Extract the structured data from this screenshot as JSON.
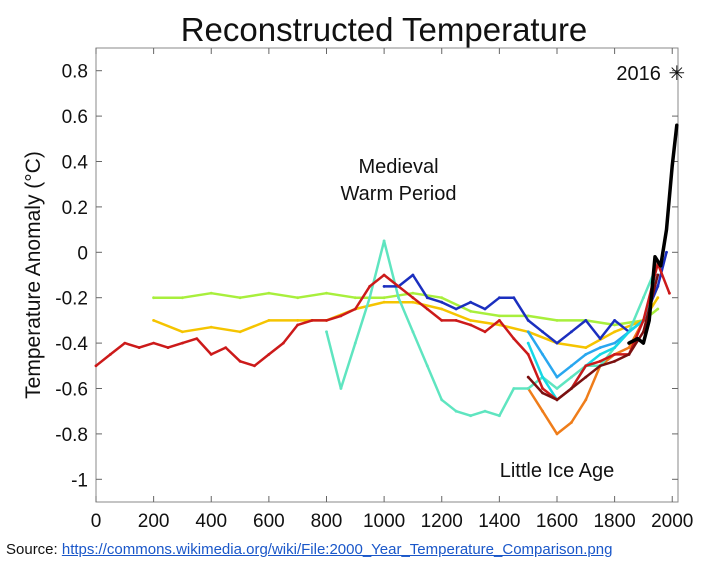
{
  "chart_data": {
    "type": "line",
    "title": "Reconstructed Temperature",
    "xlabel": "",
    "ylabel": "Temperature Anomaly (°C)",
    "xlim": [
      0,
      2020
    ],
    "ylim": [
      -1.1,
      0.9
    ],
    "x_ticks": [
      0,
      200,
      400,
      600,
      800,
      1000,
      1200,
      1400,
      1600,
      1800,
      2000
    ],
    "y_ticks": [
      -1,
      -0.8,
      -0.6,
      -0.4,
      -0.2,
      0,
      0.2,
      0.4,
      0.6,
      0.8
    ],
    "y_tick_labels": [
      "-1",
      "-0.8",
      "-0.6",
      "-0.4",
      "-0.2",
      "0",
      "0.2",
      "0.4",
      "0.6",
      "0.8"
    ],
    "annotations": [
      {
        "text": "Medieval",
        "x": 1050,
        "y": 0.35
      },
      {
        "text": "Warm Period",
        "x": 1050,
        "y": 0.23
      },
      {
        "text": "Little Ice Age",
        "x": 1600,
        "y": -0.99
      }
    ],
    "marker": {
      "label": "2016",
      "x": 2016,
      "y": 0.79,
      "symbol": "✳"
    },
    "series": [
      {
        "name": "lime",
        "color": "#a8ef3c",
        "x": [
          200,
          300,
          400,
          500,
          600,
          700,
          800,
          900,
          1000,
          1100,
          1200,
          1300,
          1400,
          1500,
          1600,
          1700,
          1800,
          1900,
          1950
        ],
        "y": [
          -0.2,
          -0.2,
          -0.18,
          -0.2,
          -0.18,
          -0.2,
          -0.18,
          -0.2,
          -0.2,
          -0.18,
          -0.2,
          -0.26,
          -0.28,
          -0.28,
          -0.3,
          -0.3,
          -0.32,
          -0.3,
          -0.25
        ]
      },
      {
        "name": "yellow",
        "color": "#f5c400",
        "x": [
          200,
          300,
          400,
          500,
          600,
          700,
          800,
          900,
          1000,
          1100,
          1200,
          1300,
          1400,
          1500,
          1600,
          1700,
          1800,
          1900,
          1950
        ],
        "y": [
          -0.3,
          -0.35,
          -0.33,
          -0.35,
          -0.3,
          -0.3,
          -0.3,
          -0.25,
          -0.22,
          -0.22,
          -0.25,
          -0.3,
          -0.32,
          -0.35,
          -0.4,
          -0.42,
          -0.35,
          -0.3,
          -0.2
        ]
      },
      {
        "name": "orange",
        "color": "#ef7d1a",
        "x": [
          1500,
          1550,
          1600,
          1650,
          1700,
          1750,
          1800,
          1850,
          1900,
          1950
        ],
        "y": [
          -0.6,
          -0.7,
          -0.8,
          -0.75,
          -0.65,
          -0.5,
          -0.45,
          -0.42,
          -0.3,
          -0.15
        ]
      },
      {
        "name": "aquamarine",
        "color": "#5fe5c0",
        "x": [
          800,
          850,
          900,
          950,
          1000,
          1050,
          1100,
          1150,
          1200,
          1250,
          1300,
          1350,
          1400,
          1450,
          1500,
          1550,
          1600,
          1650,
          1700,
          1750,
          1800,
          1850,
          1900,
          1950
        ],
        "y": [
          -0.35,
          -0.6,
          -0.4,
          -0.2,
          0.05,
          -0.2,
          -0.35,
          -0.5,
          -0.65,
          -0.7,
          -0.72,
          -0.7,
          -0.72,
          -0.6,
          -0.6,
          -0.55,
          -0.6,
          -0.55,
          -0.5,
          -0.5,
          -0.42,
          -0.35,
          -0.2,
          -0.05
        ]
      },
      {
        "name": "blue",
        "color": "#1b2fbf",
        "x": [
          1000,
          1050,
          1100,
          1150,
          1200,
          1250,
          1300,
          1350,
          1400,
          1450,
          1500,
          1550,
          1600,
          1650,
          1700,
          1750,
          1800,
          1850,
          1900,
          1950,
          1980
        ],
        "y": [
          -0.15,
          -0.15,
          -0.1,
          -0.2,
          -0.22,
          -0.25,
          -0.22,
          -0.25,
          -0.2,
          -0.2,
          -0.3,
          -0.35,
          -0.4,
          -0.35,
          -0.3,
          -0.38,
          -0.3,
          -0.35,
          -0.3,
          -0.15,
          0
        ]
      },
      {
        "name": "deep-sky-blue",
        "color": "#29a7ef",
        "x": [
          1500,
          1550,
          1600,
          1650,
          1700,
          1750,
          1800,
          1850,
          1900,
          1950
        ],
        "y": [
          -0.35,
          -0.45,
          -0.55,
          -0.5,
          -0.45,
          -0.42,
          -0.4,
          -0.35,
          -0.3,
          -0.1
        ]
      },
      {
        "name": "cyan",
        "color": "#16d8e6",
        "x": [
          1500,
          1550,
          1600,
          1650,
          1700,
          1750,
          1800,
          1850,
          1900,
          1950
        ],
        "y": [
          -0.4,
          -0.55,
          -0.65,
          -0.6,
          -0.5,
          -0.45,
          -0.42,
          -0.35,
          -0.3,
          -0.1
        ]
      },
      {
        "name": "red",
        "color": "#cc1a1a",
        "x": [
          0,
          50,
          100,
          150,
          200,
          250,
          300,
          350,
          400,
          450,
          500,
          550,
          600,
          650,
          700,
          750,
          800,
          850,
          900,
          950,
          1000,
          1050,
          1100,
          1150,
          1200,
          1250,
          1300,
          1350,
          1400,
          1450,
          1500,
          1550,
          1600,
          1650,
          1700,
          1750,
          1800,
          1850,
          1900,
          1950,
          1990
        ],
        "y": [
          -0.5,
          -0.45,
          -0.4,
          -0.42,
          -0.4,
          -0.42,
          -0.4,
          -0.38,
          -0.45,
          -0.42,
          -0.48,
          -0.5,
          -0.45,
          -0.4,
          -0.32,
          -0.3,
          -0.3,
          -0.28,
          -0.25,
          -0.15,
          -0.1,
          -0.15,
          -0.2,
          -0.25,
          -0.3,
          -0.3,
          -0.32,
          -0.35,
          -0.3,
          -0.38,
          -0.45,
          -0.6,
          -0.65,
          -0.6,
          -0.5,
          -0.48,
          -0.45,
          -0.45,
          -0.3,
          -0.05,
          -0.18
        ]
      },
      {
        "name": "dark-red",
        "color": "#7a1010",
        "x": [
          1500,
          1550,
          1600,
          1650,
          1700,
          1750,
          1800,
          1850,
          1900,
          1950
        ],
        "y": [
          -0.55,
          -0.62,
          -0.65,
          -0.6,
          -0.55,
          -0.5,
          -0.48,
          -0.45,
          -0.35,
          -0.1
        ]
      },
      {
        "name": "instrumental",
        "color": "#000000",
        "x": [
          1850,
          1880,
          1900,
          1920,
          1940,
          1960,
          1980,
          2000,
          2016
        ],
        "y": [
          -0.4,
          -0.38,
          -0.4,
          -0.3,
          -0.02,
          -0.06,
          0.1,
          0.38,
          0.56
        ]
      }
    ]
  },
  "source": {
    "label": "Source:",
    "url_text": "https://commons.wikimedia.org/wiki/File:2000_Year_Temperature_Comparison.png"
  }
}
